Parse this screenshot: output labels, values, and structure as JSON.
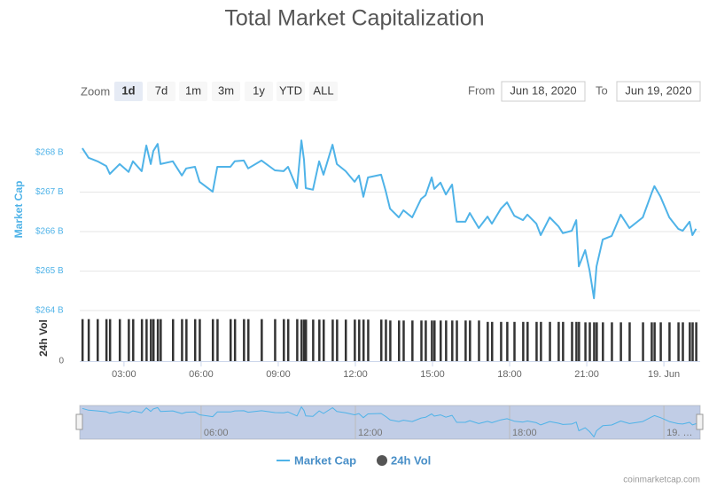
{
  "chart_data": {
    "type": "line",
    "title": "Total Market Capitalization",
    "zoom": {
      "label": "Zoom",
      "buttons": [
        "1d",
        "7d",
        "1m",
        "3m",
        "1y",
        "YTD",
        "ALL"
      ],
      "selected": 0
    },
    "range": {
      "from_label": "From",
      "from": "Jun 18, 2020",
      "to_label": "To",
      "to": "Jun 19, 2020"
    },
    "x": [
      1.38,
      1.62,
      1.97,
      2.31,
      2.45,
      2.83,
      3.18,
      3.35,
      3.69,
      3.87,
      4.04,
      4.14,
      4.31,
      4.42,
      4.9,
      5.25,
      5.42,
      5.76,
      5.94,
      6.45,
      6.63,
      7.14,
      7.31,
      7.66,
      7.83,
      8.35,
      8.87,
      9.21,
      9.38,
      9.73,
      9.9,
      10.0,
      10.07,
      10.35,
      10.59,
      10.76,
      11.11,
      11.28,
      11.62,
      11.97,
      12.14,
      12.31,
      12.49,
      13.0,
      13.18,
      13.35,
      13.69,
      13.87,
      14.21,
      14.56,
      14.73,
      14.97,
      15.07,
      15.31,
      15.52,
      15.76,
      15.94,
      16.28,
      16.45,
      16.8,
      17.14,
      17.31,
      17.66,
      17.9,
      18.18,
      18.52,
      18.69,
      19.04,
      19.21,
      19.56,
      19.9,
      20.07,
      20.42,
      20.59,
      20.69,
      20.94,
      21.11,
      21.28,
      21.38,
      21.62,
      21.97,
      22.32,
      22.66,
      23.18,
      23.52,
      23.63,
      23.87,
      24.21,
      24.56,
      24.73,
      25.0,
      25.11,
      25.25
    ],
    "xlim": [
      1.28,
      25.41
    ],
    "xticks": [
      {
        "value": 3,
        "label": "03:00"
      },
      {
        "value": 6,
        "label": "06:00"
      },
      {
        "value": 9,
        "label": "09:00"
      },
      {
        "value": 12,
        "label": "12:00"
      },
      {
        "value": 15,
        "label": "15:00"
      },
      {
        "value": 18,
        "label": "18:00"
      },
      {
        "value": 21,
        "label": "21:00"
      },
      {
        "value": 24,
        "label": "19. Jun"
      }
    ],
    "ylabel": "Market Cap",
    "ylim": [
      264,
      268.5
    ],
    "yticks": [
      {
        "value": 264,
        "label": "$264 B"
      },
      {
        "value": 265,
        "label": "$265 B"
      },
      {
        "value": 266,
        "label": "$266 B"
      },
      {
        "value": 267,
        "label": "$267 B"
      },
      {
        "value": 268,
        "label": "$268 B"
      }
    ],
    "grid": true,
    "y2label": "24h Vol",
    "y2lim": [
      0,
      100
    ],
    "y2ticks": [
      0
    ],
    "series": [
      {
        "name": "Market Cap",
        "color": "#4fb3e8",
        "values": [
          268.11,
          267.87,
          267.78,
          267.66,
          267.46,
          267.71,
          267.51,
          267.78,
          267.53,
          268.18,
          267.71,
          268.04,
          268.22,
          267.71,
          267.78,
          267.42,
          267.6,
          267.64,
          267.26,
          267.01,
          267.64,
          267.64,
          267.78,
          267.8,
          267.6,
          267.8,
          267.55,
          267.53,
          267.64,
          267.1,
          268.31,
          267.82,
          267.1,
          267.06,
          267.78,
          267.44,
          268.2,
          267.71,
          267.53,
          267.26,
          267.42,
          266.88,
          267.37,
          267.44,
          267.03,
          266.58,
          266.36,
          266.54,
          266.36,
          266.83,
          266.92,
          267.37,
          267.08,
          267.24,
          266.94,
          267.19,
          266.25,
          266.25,
          266.47,
          266.09,
          266.38,
          266.2,
          266.58,
          266.74,
          266.4,
          266.29,
          266.43,
          266.2,
          265.91,
          266.36,
          266.13,
          265.96,
          266.02,
          266.29,
          265.12,
          265.53,
          265.01,
          264.31,
          265.12,
          265.8,
          265.89,
          266.43,
          266.09,
          266.36,
          266.97,
          267.15,
          266.88,
          266.36,
          266.07,
          266.02,
          266.25,
          265.91,
          266.07
        ]
      },
      {
        "name": "24h Vol",
        "color": "#333333",
        "type": "bar",
        "axis": "y2",
        "values": [
          91,
          91,
          91,
          91,
          91,
          91,
          91,
          91,
          91,
          91,
          91,
          91,
          91,
          91,
          91,
          91,
          91,
          91,
          91,
          91,
          91,
          91,
          91,
          91,
          91,
          91,
          91,
          91,
          91,
          91,
          90,
          90,
          90,
          90,
          90,
          90,
          90,
          90,
          90,
          90,
          90,
          90,
          90,
          90,
          90,
          88,
          88,
          88,
          88,
          88,
          88,
          88,
          88,
          88,
          88,
          88,
          88,
          88,
          88,
          88,
          85,
          85,
          85,
          85,
          85,
          85,
          85,
          85,
          85,
          85,
          85,
          85,
          85,
          85,
          85,
          84,
          84,
          84,
          84,
          84,
          84,
          84,
          84,
          84,
          84,
          84,
          84,
          84,
          84,
          84,
          84,
          84,
          84
        ]
      }
    ],
    "navigator": {
      "xticks": [
        {
          "value": 6,
          "label": "06:00"
        },
        {
          "value": 12,
          "label": "12:00"
        },
        {
          "value": 18,
          "label": "18:00"
        },
        {
          "value": 24,
          "label": "19. …"
        }
      ]
    },
    "credit": "coinmarketcap.com"
  }
}
